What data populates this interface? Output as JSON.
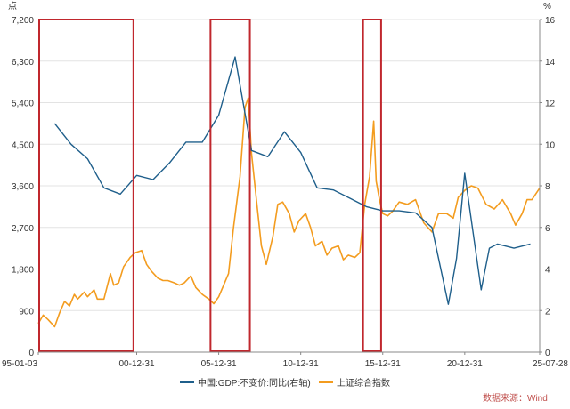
{
  "chart_data": {
    "type": "line",
    "title": "",
    "left_unit": "点",
    "right_unit": "%",
    "left_ylim": [
      0,
      7200
    ],
    "left_ticks": [
      "0",
      "900",
      "1,800",
      "2,700",
      "3,600",
      "4,500",
      "5,400",
      "6,300",
      "7,200"
    ],
    "left_tick_values": [
      0,
      900,
      1800,
      2700,
      3600,
      4500,
      5400,
      6300,
      7200
    ],
    "right_ylim": [
      0,
      16
    ],
    "right_ticks": [
      "0",
      "2",
      "4",
      "6",
      "8",
      "10",
      "12",
      "14",
      "16"
    ],
    "right_tick_values": [
      0,
      2,
      4,
      6,
      8,
      10,
      12,
      14,
      16
    ],
    "x_ticks": [
      "95-01-03",
      "00-12-31",
      "05-12-31",
      "10-12-31",
      "15-12-31",
      "20-12-31",
      "25-07-28"
    ],
    "x_tick_years": [
      1995.0,
      2001.0,
      2006.0,
      2011.0,
      2016.0,
      2021.0,
      2025.57
    ],
    "x_range_years": [
      1995.0,
      2025.57
    ],
    "grid": true,
    "legend_position": "bottom",
    "series": [
      {
        "name": "中国:GDP:不变价:同比(右轴)",
        "axis": "right",
        "color": "#1f5f8b",
        "x": [
          1996.0,
          1997.0,
          1998.0,
          1999.0,
          2000.0,
          2001.0,
          2002.0,
          2003.0,
          2004.0,
          2005.0,
          2006.0,
          2007.0,
          2008.0,
          2009.0,
          2010.0,
          2011.0,
          2012.0,
          2013.0,
          2014.0,
          2015.0,
          2016.0,
          2017.0,
          2018.0,
          2019.0,
          2020.0,
          2020.5,
          2021.0,
          2022.0,
          2022.5,
          2023.0,
          2024.0,
          2025.0
        ],
        "y": [
          11.0,
          10.0,
          9.3,
          7.9,
          7.6,
          8.5,
          8.3,
          9.1,
          10.1,
          10.1,
          11.4,
          14.2,
          9.7,
          9.4,
          10.6,
          9.6,
          7.9,
          7.8,
          7.4,
          7.0,
          6.8,
          6.8,
          6.7,
          6.0,
          2.3,
          4.5,
          8.6,
          3.0,
          5.0,
          5.2,
          5.0,
          5.2
        ]
      },
      {
        "name": "上证综合指数",
        "axis": "left",
        "color": "#f39c1f",
        "x": [
          1995.0,
          1995.3,
          1995.6,
          1996.0,
          1996.3,
          1996.6,
          1996.9,
          1997.2,
          1997.4,
          1997.8,
          1998.0,
          1998.4,
          1998.6,
          1999.0,
          1999.4,
          1999.6,
          1999.9,
          2000.2,
          2000.6,
          2000.9,
          2001.3,
          2001.6,
          2001.9,
          2002.3,
          2002.6,
          2002.9,
          2003.3,
          2003.6,
          2003.9,
          2004.3,
          2004.6,
          2005.0,
          2005.4,
          2005.7,
          2006.0,
          2006.3,
          2006.6,
          2006.9,
          2007.3,
          2007.6,
          2007.8,
          2008.0,
          2008.3,
          2008.6,
          2008.9,
          2009.3,
          2009.6,
          2009.9,
          2010.3,
          2010.6,
          2010.9,
          2011.3,
          2011.6,
          2011.9,
          2012.3,
          2012.6,
          2012.9,
          2013.3,
          2013.6,
          2013.9,
          2014.3,
          2014.6,
          2014.9,
          2015.2,
          2015.45,
          2015.6,
          2015.8,
          2016.0,
          2016.3,
          2016.6,
          2017.0,
          2017.5,
          2018.0,
          2018.5,
          2019.0,
          2019.4,
          2019.9,
          2020.3,
          2020.6,
          2021.0,
          2021.4,
          2021.8,
          2022.3,
          2022.8,
          2023.3,
          2023.8,
          2024.1,
          2024.5,
          2024.8,
          2025.1,
          2025.57
        ],
        "y": [
          620,
          800,
          700,
          550,
          850,
          1100,
          1000,
          1250,
          1150,
          1300,
          1200,
          1350,
          1150,
          1150,
          1700,
          1450,
          1500,
          1850,
          2050,
          2150,
          2200,
          1900,
          1750,
          1600,
          1550,
          1550,
          1500,
          1450,
          1500,
          1650,
          1400,
          1250,
          1150,
          1050,
          1200,
          1450,
          1700,
          2700,
          3800,
          5300,
          5500,
          4300,
          3300,
          2300,
          1900,
          2500,
          3200,
          3250,
          3000,
          2600,
          2850,
          3000,
          2700,
          2300,
          2400,
          2100,
          2250,
          2300,
          2000,
          2100,
          2050,
          2150,
          3200,
          3800,
          5000,
          3700,
          3300,
          3000,
          2950,
          3050,
          3250,
          3200,
          3300,
          2800,
          2600,
          3000,
          3000,
          2900,
          3350,
          3500,
          3600,
          3550,
          3200,
          3100,
          3300,
          3000,
          2750,
          3000,
          3300,
          3300,
          3550
        ]
      }
    ],
    "highlight_ranges": [
      {
        "x": [
          1995.0,
          2000.8
        ]
      },
      {
        "x": [
          2005.5,
          2007.9
        ]
      },
      {
        "x": [
          2014.8,
          2015.9
        ]
      }
    ],
    "highlight_color": "#c0272d",
    "source_label": "数据来源：Wind"
  }
}
